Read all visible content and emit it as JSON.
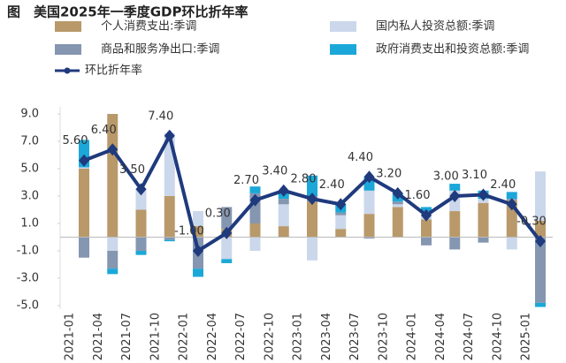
{
  "chart_data": {
    "type": "bar",
    "title": "图　美国2025年一季度GDP环比折年率",
    "categories": [
      "2021-01",
      "2021-04",
      "2021-07",
      "2021-10",
      "2022-01",
      "2022-04",
      "2022-07",
      "2022-10",
      "2023-01",
      "2023-04",
      "2023-07",
      "2023-10",
      "2024-01",
      "2024-04",
      "2024-07",
      "2024-10",
      "2025-01"
    ],
    "series": [
      {
        "name": "个人消费支出:季调",
        "color": "#b9996a",
        "values": [
          5.0,
          9.0,
          2.0,
          3.0,
          0.8,
          0.6,
          1.0,
          0.8,
          2.6,
          0.6,
          1.7,
          2.2,
          1.3,
          1.9,
          2.5,
          2.7,
          1.2
        ]
      },
      {
        "name": "国内私人投资总额:季调",
        "color": "#cbd7ea",
        "values": [
          0.1,
          -1.0,
          1.6,
          4.6,
          1.1,
          -1.6,
          -1.0,
          1.6,
          -1.7,
          1.0,
          1.7,
          0.2,
          0.6,
          1.5,
          0.3,
          -0.9,
          3.6
        ]
      },
      {
        "name": "商品和服务净出口:季调",
        "color": "#8596b0",
        "values": [
          -1.5,
          -1.3,
          -1.0,
          -0.2,
          -2.3,
          1.6,
          2.2,
          0.4,
          0.4,
          0.2,
          -0.1,
          0.2,
          -0.6,
          -0.9,
          -0.4,
          0.1,
          -4.8
        ]
      },
      {
        "name": "政府消费支出和投资总额:季调",
        "color": "#1ba8d9",
        "values": [
          2.0,
          -0.4,
          -0.3,
          -0.1,
          -0.6,
          -0.3,
          0.5,
          0.6,
          1.5,
          0.6,
          1.0,
          0.6,
          0.3,
          0.5,
          0.6,
          0.5,
          -0.3
        ]
      },
      {
        "name": "环比折年率",
        "type": "line",
        "color": "#1f3a7d",
        "values": [
          5.6,
          6.4,
          3.5,
          7.4,
          -1.0,
          0.3,
          2.7,
          3.4,
          2.8,
          2.4,
          4.4,
          3.2,
          1.6,
          3.0,
          3.1,
          2.4,
          -0.3
        ],
        "value_labels": [
          "5.60",
          "6.40",
          "3.50",
          "7.40",
          "-1.00",
          "0.30",
          "2.70",
          "3.40",
          "2.80",
          "2.40",
          "4.40",
          "3.20",
          "1.60",
          "3.00",
          "3.10",
          "2.40",
          "-0.30"
        ]
      }
    ],
    "ylim": [
      -5,
      9
    ],
    "yticks": [
      {
        "value": 9,
        "label": "9.0"
      },
      {
        "value": 7,
        "label": "7.0"
      },
      {
        "value": 5,
        "label": "5.0"
      },
      {
        "value": 3,
        "label": "3.0"
      },
      {
        "value": 1,
        "label": "1.0"
      },
      {
        "value": -1,
        "label": "-1.0"
      },
      {
        "value": -3,
        "label": "-3.0"
      },
      {
        "value": -5,
        "label": "-5.0"
      }
    ]
  }
}
